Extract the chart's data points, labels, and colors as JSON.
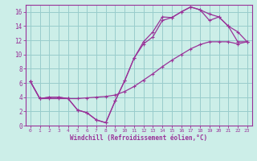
{
  "xlabel": "Windchill (Refroidissement éolien,°C)",
  "bg_color": "#cceee8",
  "grid_color": "#99cccc",
  "line_color": "#993399",
  "xlim": [
    -0.5,
    23.5
  ],
  "ylim": [
    0,
    17
  ],
  "xticks": [
    0,
    1,
    2,
    3,
    4,
    5,
    6,
    7,
    8,
    9,
    10,
    11,
    12,
    13,
    14,
    15,
    16,
    17,
    18,
    19,
    20,
    21,
    22,
    23
  ],
  "yticks": [
    0,
    2,
    4,
    6,
    8,
    10,
    12,
    14,
    16
  ],
  "line1_x": [
    0,
    1,
    2,
    3,
    4,
    5,
    6,
    7,
    8,
    9,
    10,
    11,
    12,
    13,
    14,
    15,
    16,
    17,
    18,
    19,
    20,
    21,
    22,
    23
  ],
  "line1_y": [
    6.2,
    3.8,
    4.0,
    4.0,
    3.8,
    2.2,
    1.8,
    0.8,
    0.4,
    3.5,
    6.3,
    9.5,
    11.8,
    13.2,
    15.3,
    15.2,
    16.0,
    16.7,
    16.3,
    15.7,
    15.3,
    14.0,
    11.8,
    11.8
  ],
  "line2_x": [
    0,
    1,
    2,
    3,
    4,
    5,
    6,
    7,
    8,
    9,
    10,
    11,
    12,
    13,
    14,
    15,
    16,
    17,
    18,
    19,
    20,
    21,
    22,
    23
  ],
  "line2_y": [
    6.2,
    3.8,
    4.0,
    4.0,
    3.8,
    2.2,
    1.8,
    0.8,
    0.4,
    3.5,
    6.3,
    9.5,
    11.5,
    12.5,
    14.8,
    15.2,
    16.0,
    16.7,
    16.3,
    14.8,
    15.3,
    14.0,
    13.2,
    11.8
  ],
  "line3_x": [
    0,
    1,
    2,
    3,
    4,
    5,
    6,
    7,
    8,
    9,
    10,
    11,
    12,
    13,
    14,
    15,
    16,
    17,
    18,
    19,
    20,
    21,
    22,
    23
  ],
  "line3_y": [
    6.2,
    3.8,
    3.8,
    3.8,
    3.8,
    3.8,
    3.9,
    4.0,
    4.1,
    4.3,
    4.8,
    5.5,
    6.4,
    7.3,
    8.3,
    9.2,
    10.0,
    10.8,
    11.4,
    11.8,
    11.8,
    11.8,
    11.5,
    11.8
  ]
}
